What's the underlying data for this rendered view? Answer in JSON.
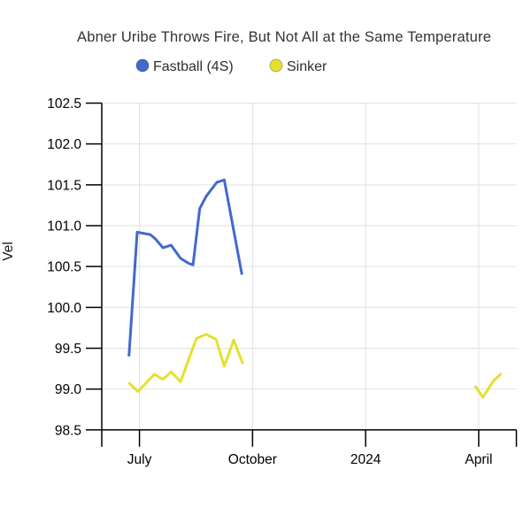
{
  "chart": {
    "title": "Abner Uribe Throws Fire, But Not All at the Same Temperature",
    "ylabel": "Vel",
    "legend": [
      {
        "label": "Fastball (4S)",
        "color": "#4269d0"
      },
      {
        "label": "Sinker",
        "color": "#e5e02e"
      }
    ]
  },
  "chart_data": {
    "type": "line",
    "title": "Abner Uribe Throws Fire, But Not All at the Same Temperature",
    "xlabel": "",
    "ylabel": "Vel",
    "grid": true,
    "legend_position": "top",
    "ylim": [
      98.5,
      102.5
    ],
    "x_domain": [
      0,
      11
    ],
    "x_unit": "months after June 2023",
    "x_ticks": [
      {
        "m": 1,
        "label": "July"
      },
      {
        "m": 4,
        "label": "October"
      },
      {
        "m": 7,
        "label": "2024"
      },
      {
        "m": 10,
        "label": "April"
      }
    ],
    "y_ticks": [
      {
        "value": 98.5,
        "label": "98.5"
      },
      {
        "value": 99.0,
        "label": "99.0"
      },
      {
        "value": 99.5,
        "label": "99.5"
      },
      {
        "value": 100.0,
        "label": "100.0"
      },
      {
        "value": 100.5,
        "label": "100.5"
      },
      {
        "value": 101.0,
        "label": "101.0"
      },
      {
        "value": 101.5,
        "label": "101.5"
      },
      {
        "value": 102.0,
        "label": "102.0"
      },
      {
        "value": 102.5,
        "label": "102.5"
      }
    ],
    "series": [
      {
        "name": "Fastball (4S)",
        "color": "#4269d0",
        "segments": [
          [
            [
              0.72,
              99.4
            ],
            [
              0.94,
              100.92
            ],
            [
              1.29,
              100.89
            ],
            [
              1.42,
              100.84
            ],
            [
              1.62,
              100.73
            ],
            [
              1.84,
              100.76
            ],
            [
              2.09,
              100.6
            ],
            [
              2.3,
              100.54
            ],
            [
              2.42,
              100.52
            ],
            [
              2.6,
              101.21
            ],
            [
              2.77,
              101.36
            ],
            [
              3.05,
              101.53
            ],
            [
              3.25,
              101.56
            ],
            [
              3.72,
              100.4
            ]
          ]
        ]
      },
      {
        "name": "Sinker",
        "color": "#e5e02e",
        "segments": [
          [
            [
              0.71,
              99.08
            ],
            [
              0.96,
              98.97
            ],
            [
              1.29,
              99.13
            ],
            [
              1.4,
              99.18
            ],
            [
              1.62,
              99.12
            ],
            [
              1.84,
              99.21
            ],
            [
              2.09,
              99.09
            ],
            [
              2.51,
              99.62
            ],
            [
              2.77,
              99.67
            ],
            [
              3.03,
              99.61
            ],
            [
              3.25,
              99.28
            ],
            [
              3.5,
              99.6
            ],
            [
              3.74,
              99.31
            ]
          ],
          [
            [
              9.9,
              99.04
            ],
            [
              10.11,
              98.9
            ],
            [
              10.39,
              99.1
            ],
            [
              10.6,
              99.19
            ]
          ]
        ]
      }
    ]
  }
}
